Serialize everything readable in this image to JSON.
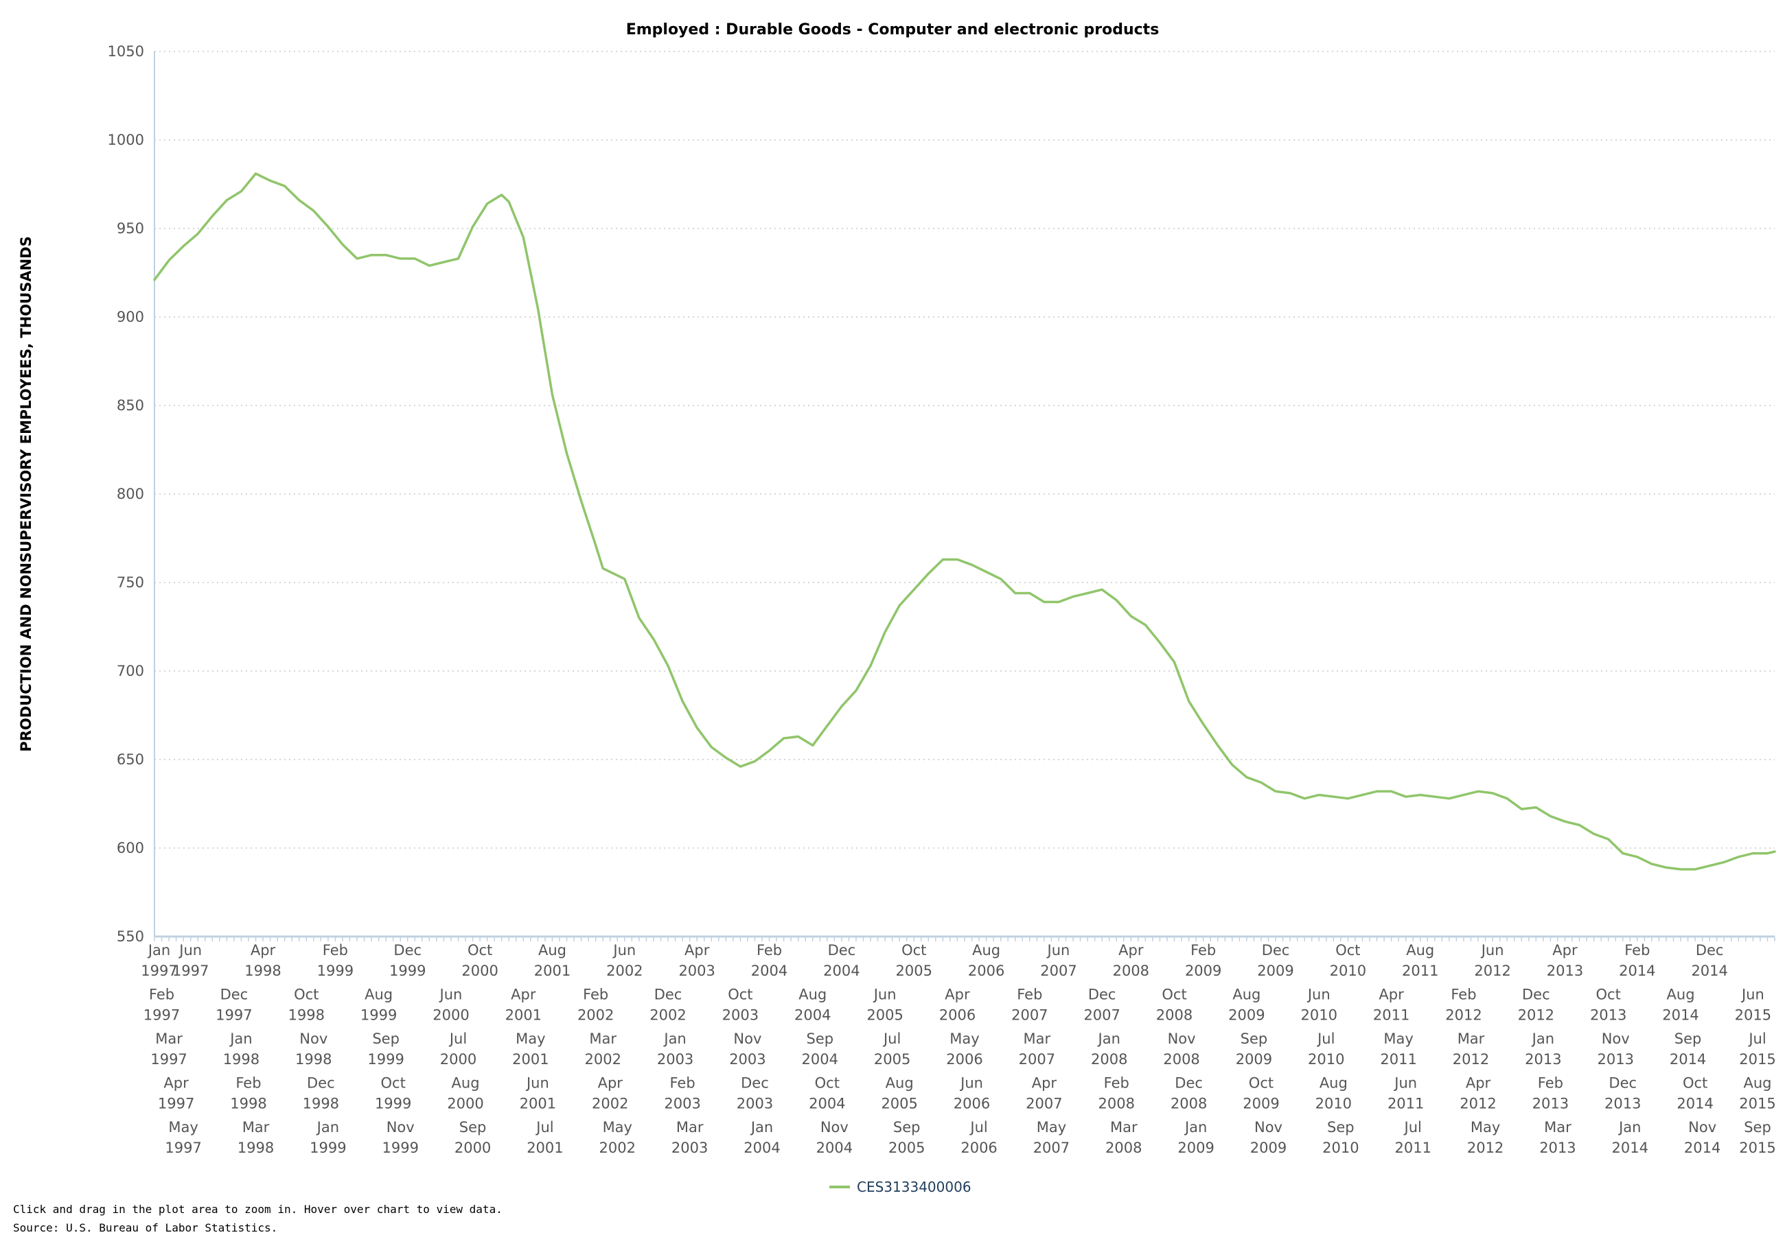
{
  "chart_data": {
    "type": "line",
    "title": "Employed : Durable Goods - Computer and electronic products",
    "ylabel": "PRODUCTION AND NONSUPERVISORY EMPLOYEES, THOUSANDS",
    "ylim": [
      550,
      1050
    ],
    "yticks": [
      550,
      600,
      650,
      700,
      750,
      800,
      850,
      900,
      950,
      1000,
      1050
    ],
    "grid": true,
    "legend_position": "bottom-center",
    "x_start": "1997-01",
    "x_end": "2015-09",
    "xtick_rows": [
      [
        [
          "Jan",
          "1997"
        ],
        [
          "Jun",
          "1997"
        ],
        [
          "Apr",
          "1998"
        ],
        [
          "Feb",
          "1999"
        ],
        [
          "Dec",
          "1999"
        ],
        [
          "Oct",
          "2000"
        ],
        [
          "Aug",
          "2001"
        ],
        [
          "Jun",
          "2002"
        ],
        [
          "Apr",
          "2003"
        ],
        [
          "Feb",
          "2004"
        ],
        [
          "Dec",
          "2004"
        ],
        [
          "Oct",
          "2005"
        ],
        [
          "Aug",
          "2006"
        ],
        [
          "Jun",
          "2007"
        ],
        [
          "Apr",
          "2008"
        ],
        [
          "Feb",
          "2009"
        ],
        [
          "Dec",
          "2009"
        ],
        [
          "Oct",
          "2010"
        ],
        [
          "Aug",
          "2011"
        ],
        [
          "Jun",
          "2012"
        ],
        [
          "Apr",
          "2013"
        ],
        [
          "Feb",
          "2014"
        ],
        [
          "Dec",
          "2014"
        ]
      ],
      [
        [
          "Feb",
          "1997"
        ],
        [
          "Dec",
          "1997"
        ],
        [
          "Oct",
          "1998"
        ],
        [
          "Aug",
          "1999"
        ],
        [
          "Jun",
          "2000"
        ],
        [
          "Apr",
          "2001"
        ],
        [
          "Feb",
          "2002"
        ],
        [
          "Dec",
          "2002"
        ],
        [
          "Oct",
          "2003"
        ],
        [
          "Aug",
          "2004"
        ],
        [
          "Jun",
          "2005"
        ],
        [
          "Apr",
          "2006"
        ],
        [
          "Feb",
          "2007"
        ],
        [
          "Dec",
          "2007"
        ],
        [
          "Oct",
          "2008"
        ],
        [
          "Aug",
          "2009"
        ],
        [
          "Jun",
          "2010"
        ],
        [
          "Apr",
          "2011"
        ],
        [
          "Feb",
          "2012"
        ],
        [
          "Dec",
          "2012"
        ],
        [
          "Oct",
          "2013"
        ],
        [
          "Aug",
          "2014"
        ],
        [
          "Jun",
          "2015"
        ]
      ],
      [
        [
          "Mar",
          "1997"
        ],
        [
          "Jan",
          "1998"
        ],
        [
          "Nov",
          "1998"
        ],
        [
          "Sep",
          "1999"
        ],
        [
          "Jul",
          "2000"
        ],
        [
          "May",
          "2001"
        ],
        [
          "Mar",
          "2002"
        ],
        [
          "Jan",
          "2003"
        ],
        [
          "Nov",
          "2003"
        ],
        [
          "Sep",
          "2004"
        ],
        [
          "Jul",
          "2005"
        ],
        [
          "May",
          "2006"
        ],
        [
          "Mar",
          "2007"
        ],
        [
          "Jan",
          "2008"
        ],
        [
          "Nov",
          "2008"
        ],
        [
          "Sep",
          "2009"
        ],
        [
          "Jul",
          "2010"
        ],
        [
          "May",
          "2011"
        ],
        [
          "Mar",
          "2012"
        ],
        [
          "Jan",
          "2013"
        ],
        [
          "Nov",
          "2013"
        ],
        [
          "Sep",
          "2014"
        ],
        [
          "Jul",
          "2015"
        ]
      ],
      [
        [
          "Apr",
          "1997"
        ],
        [
          "Feb",
          "1998"
        ],
        [
          "Dec",
          "1998"
        ],
        [
          "Oct",
          "1999"
        ],
        [
          "Aug",
          "2000"
        ],
        [
          "Jun",
          "2001"
        ],
        [
          "Apr",
          "2002"
        ],
        [
          "Feb",
          "2003"
        ],
        [
          "Dec",
          "2003"
        ],
        [
          "Oct",
          "2004"
        ],
        [
          "Aug",
          "2005"
        ],
        [
          "Jun",
          "2006"
        ],
        [
          "Apr",
          "2007"
        ],
        [
          "Feb",
          "2008"
        ],
        [
          "Dec",
          "2008"
        ],
        [
          "Oct",
          "2009"
        ],
        [
          "Aug",
          "2010"
        ],
        [
          "Jun",
          "2011"
        ],
        [
          "Apr",
          "2012"
        ],
        [
          "Feb",
          "2013"
        ],
        [
          "Dec",
          "2013"
        ],
        [
          "Oct",
          "2014"
        ],
        [
          "Aug",
          "2015"
        ]
      ],
      [
        [
          "May",
          "1997"
        ],
        [
          "Mar",
          "1998"
        ],
        [
          "Jan",
          "1999"
        ],
        [
          "Nov",
          "1999"
        ],
        [
          "Sep",
          "2000"
        ],
        [
          "Jul",
          "2001"
        ],
        [
          "May",
          "2002"
        ],
        [
          "Mar",
          "2003"
        ],
        [
          "Jan",
          "2004"
        ],
        [
          "Nov",
          "2004"
        ],
        [
          "Sep",
          "2005"
        ],
        [
          "Jul",
          "2006"
        ],
        [
          "May",
          "2007"
        ],
        [
          "Mar",
          "2008"
        ],
        [
          "Jan",
          "2009"
        ],
        [
          "Nov",
          "2009"
        ],
        [
          "Sep",
          "2010"
        ],
        [
          "Jul",
          "2011"
        ],
        [
          "May",
          "2012"
        ],
        [
          "Mar",
          "2013"
        ],
        [
          "Jan",
          "2014"
        ],
        [
          "Nov",
          "2014"
        ],
        [
          "Sep",
          "2015"
        ]
      ]
    ],
    "series": [
      {
        "name": "CES3133400006",
        "color": "#90c56b",
        "points": [
          [
            "1997-01",
            921
          ],
          [
            "1997-03",
            932
          ],
          [
            "1997-05",
            940
          ],
          [
            "1997-07",
            947
          ],
          [
            "1997-09",
            957
          ],
          [
            "1997-11",
            966
          ],
          [
            "1998-01",
            971
          ],
          [
            "1998-03",
            981
          ],
          [
            "1998-05",
            977
          ],
          [
            "1998-07",
            974
          ],
          [
            "1998-09",
            966
          ],
          [
            "1998-11",
            960
          ],
          [
            "1999-01",
            951
          ],
          [
            "1999-03",
            941
          ],
          [
            "1999-05",
            933
          ],
          [
            "1999-07",
            935
          ],
          [
            "1999-09",
            935
          ],
          [
            "1999-11",
            933
          ],
          [
            "2000-01",
            933
          ],
          [
            "2000-03",
            929
          ],
          [
            "2000-05",
            931
          ],
          [
            "2000-07",
            933
          ],
          [
            "2000-09",
            951
          ],
          [
            "2000-11",
            964
          ],
          [
            "2001-01",
            969
          ],
          [
            "2001-02",
            965
          ],
          [
            "2001-04",
            945
          ],
          [
            "2001-06",
            905
          ],
          [
            "2001-08",
            856
          ],
          [
            "2001-10",
            823
          ],
          [
            "2001-12",
            796
          ],
          [
            "2002-02",
            771
          ],
          [
            "2002-03",
            758
          ],
          [
            "2002-06",
            752
          ],
          [
            "2002-08",
            730
          ],
          [
            "2002-10",
            718
          ],
          [
            "2002-12",
            703
          ],
          [
            "2003-02",
            683
          ],
          [
            "2003-04",
            668
          ],
          [
            "2003-06",
            657
          ],
          [
            "2003-08",
            651
          ],
          [
            "2003-10",
            646
          ],
          [
            "2003-12",
            649
          ],
          [
            "2004-02",
            655
          ],
          [
            "2004-04",
            662
          ],
          [
            "2004-06",
            663
          ],
          [
            "2004-08",
            658
          ],
          [
            "2004-10",
            669
          ],
          [
            "2004-12",
            680
          ],
          [
            "2005-02",
            689
          ],
          [
            "2005-04",
            703
          ],
          [
            "2005-06",
            722
          ],
          [
            "2005-08",
            737
          ],
          [
            "2005-10",
            746
          ],
          [
            "2005-12",
            755
          ],
          [
            "2006-02",
            763
          ],
          [
            "2006-04",
            763
          ],
          [
            "2006-06",
            760
          ],
          [
            "2006-08",
            756
          ],
          [
            "2006-10",
            752
          ],
          [
            "2006-12",
            744
          ],
          [
            "2007-02",
            744
          ],
          [
            "2007-04",
            739
          ],
          [
            "2007-06",
            739
          ],
          [
            "2007-08",
            742
          ],
          [
            "2007-10",
            744
          ],
          [
            "2007-12",
            746
          ],
          [
            "2008-02",
            740
          ],
          [
            "2008-04",
            731
          ],
          [
            "2008-06",
            726
          ],
          [
            "2008-08",
            716
          ],
          [
            "2008-10",
            705
          ],
          [
            "2008-12",
            683
          ],
          [
            "2009-02",
            670
          ],
          [
            "2009-04",
            658
          ],
          [
            "2009-06",
            647
          ],
          [
            "2009-08",
            640
          ],
          [
            "2009-10",
            637
          ],
          [
            "2009-12",
            632
          ],
          [
            "2010-02",
            631
          ],
          [
            "2010-04",
            628
          ],
          [
            "2010-06",
            630
          ],
          [
            "2010-08",
            629
          ],
          [
            "2010-10",
            628
          ],
          [
            "2010-12",
            630
          ],
          [
            "2011-02",
            632
          ],
          [
            "2011-04",
            632
          ],
          [
            "2011-06",
            629
          ],
          [
            "2011-08",
            630
          ],
          [
            "2011-10",
            629
          ],
          [
            "2011-12",
            628
          ],
          [
            "2012-02",
            630
          ],
          [
            "2012-04",
            632
          ],
          [
            "2012-06",
            631
          ],
          [
            "2012-08",
            628
          ],
          [
            "2012-10",
            622
          ],
          [
            "2012-12",
            623
          ],
          [
            "2013-02",
            618
          ],
          [
            "2013-04",
            615
          ],
          [
            "2013-06",
            613
          ],
          [
            "2013-08",
            608
          ],
          [
            "2013-10",
            605
          ],
          [
            "2013-12",
            597
          ],
          [
            "2014-02",
            595
          ],
          [
            "2014-04",
            591
          ],
          [
            "2014-06",
            589
          ],
          [
            "2014-08",
            588
          ],
          [
            "2014-10",
            588
          ],
          [
            "2014-12",
            590
          ],
          [
            "2015-02",
            592
          ],
          [
            "2015-04",
            595
          ],
          [
            "2015-06",
            597
          ],
          [
            "2015-08",
            597
          ],
          [
            "2015-09",
            598
          ]
        ]
      }
    ]
  },
  "footer": {
    "hint": "Click and drag in the plot area to zoom in. Hover over chart to view data.",
    "source": "Source: U.S. Bureau of Labor Statistics."
  }
}
